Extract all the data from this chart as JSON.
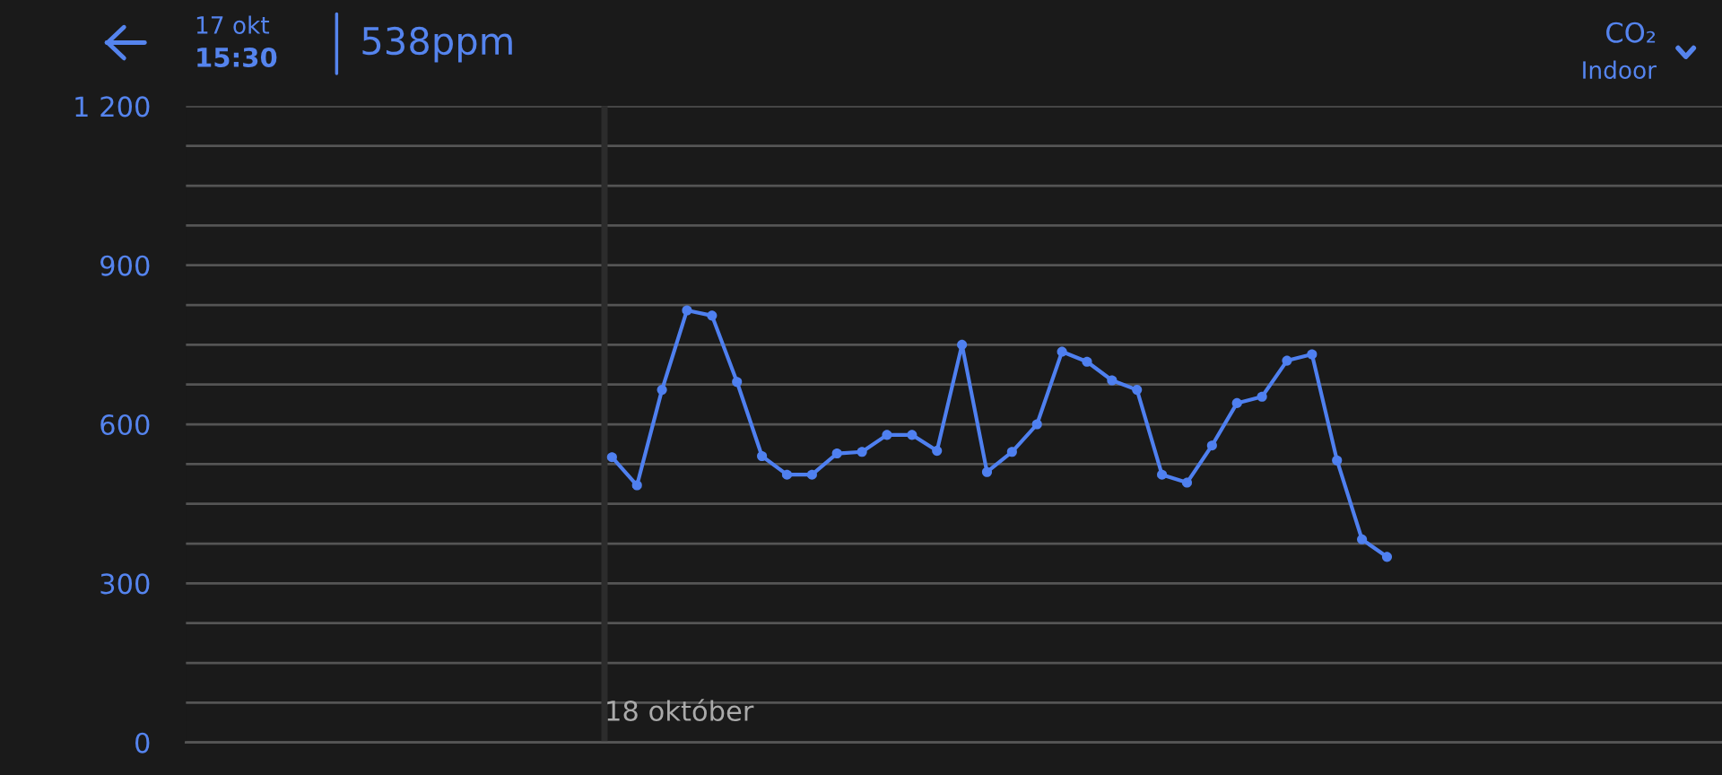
{
  "chart_data": {
    "type": "line",
    "title": "CO₂",
    "subtitle": "Indoor",
    "annotations": [
      "17 okt",
      "15:30",
      "538ppm",
      "18 október"
    ],
    "categories": [
      null,
      null,
      null,
      null,
      null,
      null,
      null,
      null,
      null,
      null,
      null,
      null,
      null,
      null,
      null,
      null,
      null,
      null,
      null,
      null,
      null,
      null,
      null,
      null,
      null,
      null,
      null,
      null,
      null,
      null,
      null,
      null
    ],
    "series": [
      {
        "color": "#4f80f0",
        "values": [
          538,
          485,
          665,
          815,
          805,
          680,
          540,
          505,
          505,
          545,
          548,
          580,
          580,
          550,
          750,
          510,
          548,
          600,
          737,
          718,
          683,
          665,
          505,
          490,
          560,
          640,
          652,
          720,
          732,
          532,
          383,
          350
        ]
      }
    ],
    "ylim": [
      0,
      1200
    ],
    "yticks": [
      0,
      {
        "value": 75,
        "label": null
      },
      {
        "value": 150,
        "label": null
      },
      {
        "value": 225,
        "label": null
      },
      300,
      {
        "value": 375,
        "label": null
      },
      {
        "value": 450,
        "label": null
      },
      {
        "value": 525,
        "label": null
      },
      600,
      {
        "value": 675,
        "label": null
      },
      {
        "value": 750,
        "label": null
      },
      {
        "value": 825,
        "label": null
      },
      900,
      {
        "value": 975,
        "label": null
      },
      {
        "value": 1050,
        "label": null
      },
      {
        "value": 1125,
        "label": null
      },
      {
        "value": 1200,
        "label": "1 200"
      }
    ],
    "grid": "y",
    "marker": "circle",
    "line_style": "solid",
    "legend": false,
    "tick_labels": "y"
  }
}
